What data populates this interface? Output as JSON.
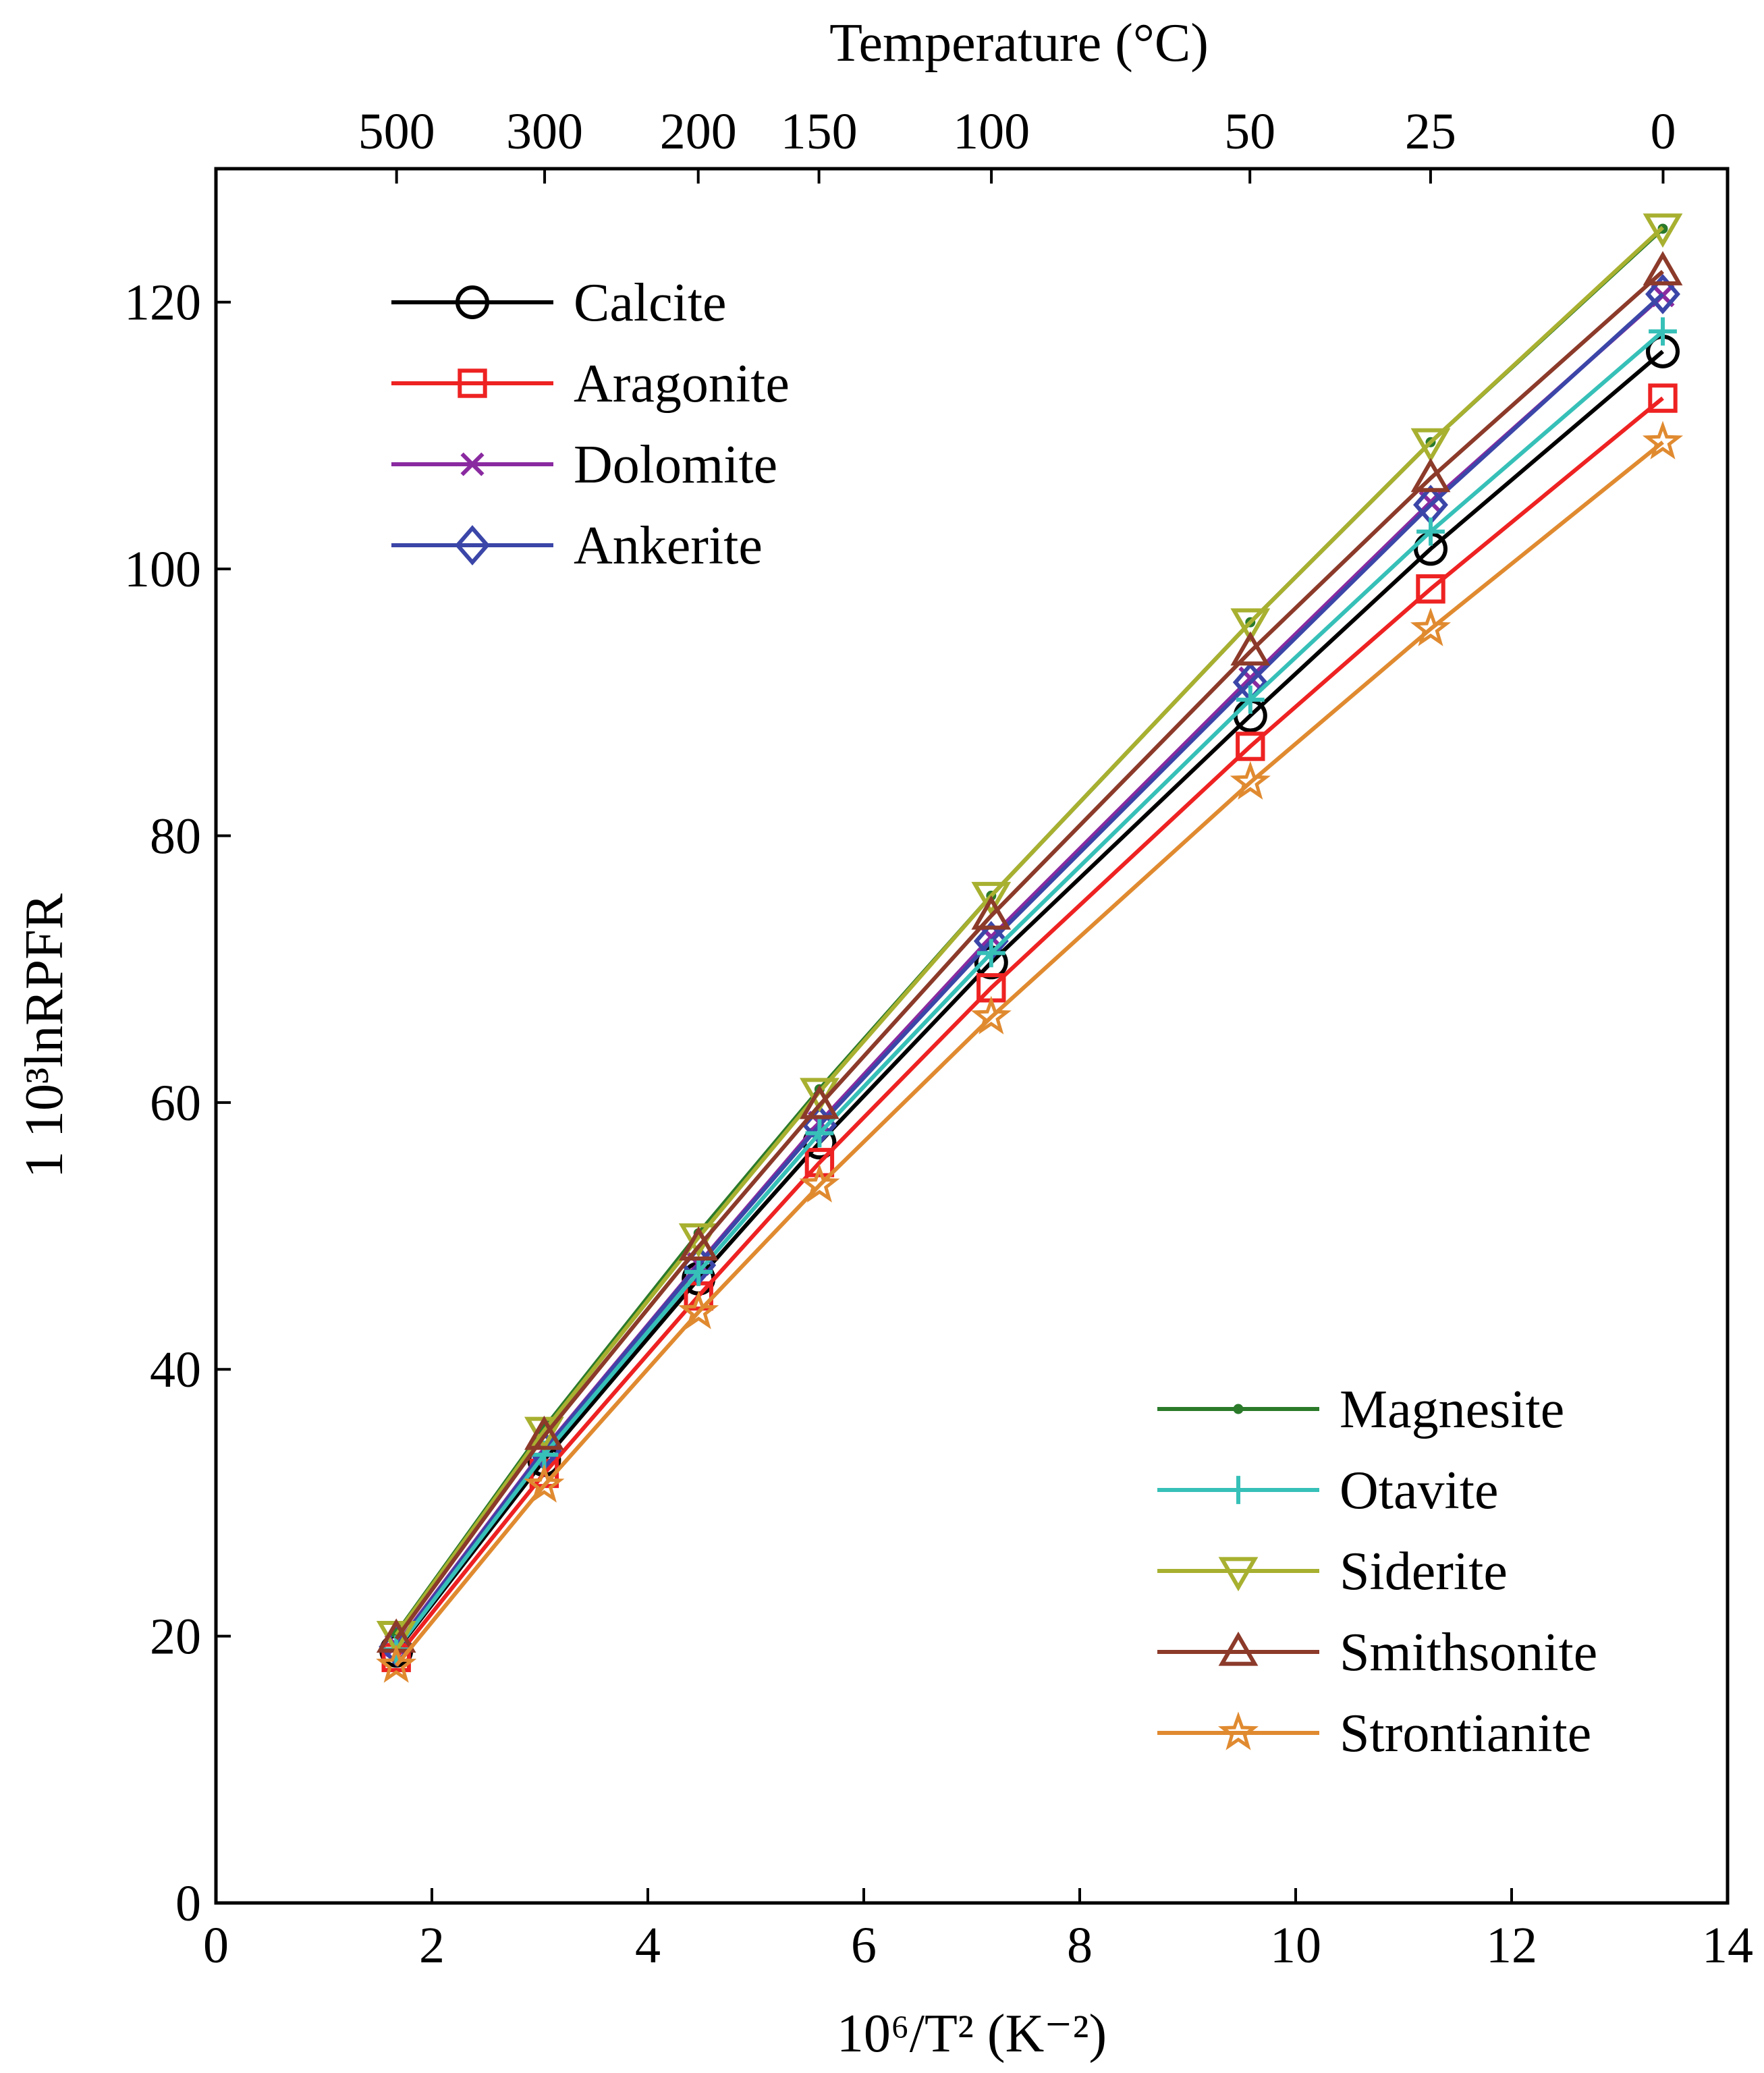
{
  "chart_data": {
    "type": "line",
    "xlabel": "10⁶/T² (K⁻²)",
    "ylabel": "1 10³lnRPFR",
    "top_xlabel": "Temperature (°C)",
    "xlim": [
      0,
      14
    ],
    "ylim": [
      0,
      130
    ],
    "x_ticks": [
      0,
      2,
      4,
      6,
      8,
      10,
      12,
      14
    ],
    "y_ticks": [
      0,
      20,
      40,
      60,
      80,
      100,
      120
    ],
    "top_ticks": [
      {
        "label": "500",
        "temp_c": 500
      },
      {
        "label": "300",
        "temp_c": 300
      },
      {
        "label": "200",
        "temp_c": 200
      },
      {
        "label": "150",
        "temp_c": 150
      },
      {
        "label": "100",
        "temp_c": 100
      },
      {
        "label": "50",
        "temp_c": 50
      },
      {
        "label": "25",
        "temp_c": 25
      },
      {
        "label": "0",
        "temp_c": 0
      }
    ],
    "x": [
      1.67,
      3.04,
      4.47,
      5.59,
      7.18,
      9.58,
      11.25,
      13.4
    ],
    "series": [
      {
        "name": "Calcite",
        "color": "#000000",
        "marker": "circle",
        "values": [
          18.9,
          33.2,
          46.8,
          57.0,
          70.5,
          89.0,
          101.5,
          116.3
        ]
      },
      {
        "name": "Aragonite",
        "color": "#ee2222",
        "marker": "square",
        "values": [
          18.4,
          32.2,
          45.5,
          55.5,
          68.6,
          86.7,
          98.5,
          112.8
        ]
      },
      {
        "name": "Dolomite",
        "color": "#8a2aa0",
        "marker": "x",
        "values": [
          19.3,
          34.0,
          47.9,
          58.5,
          72.4,
          91.8,
          105.0,
          120.5
        ]
      },
      {
        "name": "Ankerite",
        "color": "#3b46a8",
        "marker": "diamond",
        "values": [
          19.2,
          33.9,
          47.8,
          58.3,
          72.1,
          91.5,
          104.8,
          120.6
        ]
      },
      {
        "name": "Magnesite",
        "color": "#2a7a2a",
        "marker": "dot",
        "values": [
          20.2,
          35.6,
          50.2,
          61.0,
          75.5,
          96.0,
          109.5,
          125.5
        ]
      },
      {
        "name": "Otavite",
        "color": "#36c0b8",
        "marker": "plus",
        "values": [
          19.0,
          33.6,
          47.3,
          57.7,
          71.2,
          90.2,
          102.8,
          117.8
        ]
      },
      {
        "name": "Siderite",
        "color": "#a8b030",
        "marker": "triangle-down",
        "values": [
          20.1,
          35.4,
          49.9,
          60.8,
          75.5,
          96.0,
          109.5,
          125.6
        ]
      },
      {
        "name": "Smithsonite",
        "color": "#8c3a2a",
        "marker": "triangle-up",
        "values": [
          19.8,
          35.0,
          49.2,
          59.8,
          74.0,
          93.8,
          106.8,
          122.3
        ]
      },
      {
        "name": "Strontianite",
        "color": "#e08a30",
        "marker": "star",
        "values": [
          17.8,
          31.3,
          44.3,
          53.8,
          66.4,
          84.0,
          95.5,
          109.5
        ]
      }
    ],
    "legends": [
      {
        "placement": "top-left",
        "entries": [
          "Calcite",
          "Aragonite",
          "Dolomite",
          "Ankerite"
        ]
      },
      {
        "placement": "bottom-right",
        "entries": [
          "Magnesite",
          "Otavite",
          "Siderite",
          "Smithsonite",
          "Strontianite"
        ]
      }
    ]
  }
}
